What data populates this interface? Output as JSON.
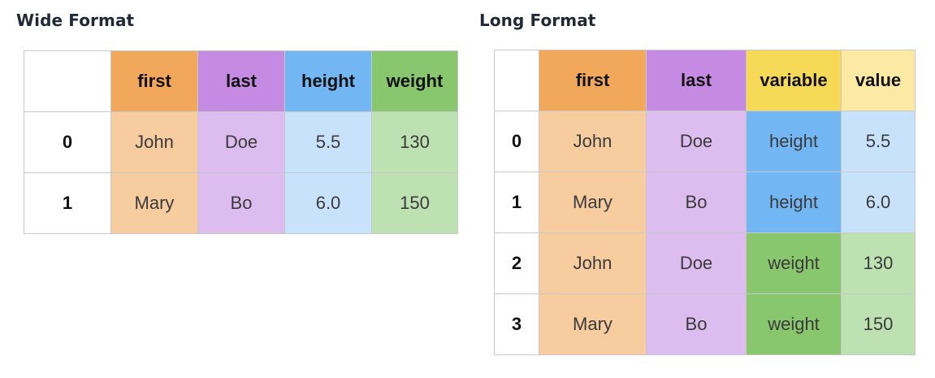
{
  "colors": {
    "first_header": "#f2a85a",
    "first_cell": "#f7cda0",
    "last_header": "#c58be3",
    "last_cell": "#ddbdf0",
    "height_header": "#72b6f3",
    "height_cell": "#c9e2fb",
    "weight_header": "#89c76f",
    "weight_cell": "#bde1b1",
    "variable_header": "#f5d957",
    "value_header": "#fbe9a4",
    "value_cell_height": "#c9e2fb",
    "value_cell_weight": "#bde1b1"
  },
  "wide": {
    "title": "Wide Format",
    "columns": [
      "first",
      "last",
      "height",
      "weight"
    ],
    "rows": [
      {
        "index": "0",
        "first": "John",
        "last": "Doe",
        "height": "5.5",
        "weight": "130"
      },
      {
        "index": "1",
        "first": "Mary",
        "last": "Bo",
        "height": "6.0",
        "weight": "150"
      }
    ]
  },
  "long": {
    "title": "Long Format",
    "columns": [
      "first",
      "last",
      "variable",
      "value"
    ],
    "rows": [
      {
        "index": "0",
        "first": "John",
        "last": "Doe",
        "variable": "height",
        "value": "5.5"
      },
      {
        "index": "1",
        "first": "Mary",
        "last": "Bo",
        "variable": "height",
        "value": "6.0"
      },
      {
        "index": "2",
        "first": "John",
        "last": "Doe",
        "variable": "weight",
        "value": "130"
      },
      {
        "index": "3",
        "first": "Mary",
        "last": "Bo",
        "variable": "weight",
        "value": "150"
      }
    ]
  }
}
